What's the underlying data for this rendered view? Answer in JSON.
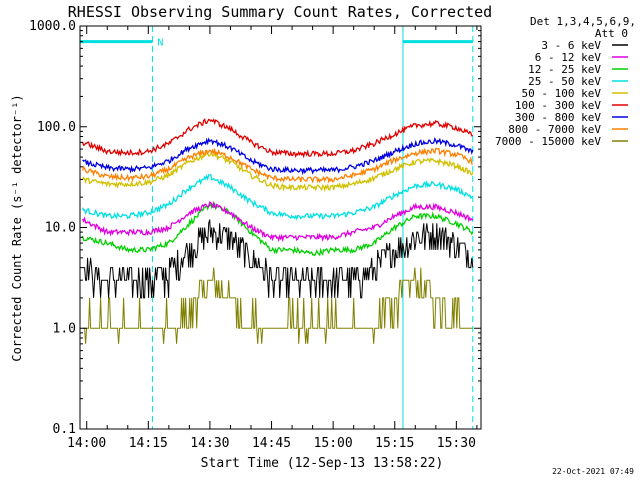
{
  "chart_data": {
    "type": "line",
    "title": "RHESSI Observing Summary Count Rates, Corrected",
    "xlabel": "Start Time (12-Sep-13 13:58:22)",
    "ylabel": "Corrected Count Rate (s⁻¹ detector⁻¹)",
    "y_scale": "log",
    "ylim": [
      0.1,
      1000.0
    ],
    "xlim": [
      "13:58:22",
      "15:36:00"
    ],
    "x_ticks": [
      "14:00",
      "14:15",
      "14:30",
      "14:45",
      "15:00",
      "15:15",
      "15:30"
    ],
    "y_ticks": [
      "0.1",
      "1.0",
      "10.0",
      "100.0",
      "1000.0"
    ],
    "legend_header": [
      "Det 1,3,4,5,6,9,",
      "Att 0"
    ],
    "legend_position": "right",
    "footer_date": "22-Oct-2021 07:49",
    "annotations": [
      {
        "type": "flag-bar",
        "label": "N",
        "start": "13:58:22",
        "end": "14:16:00",
        "value": 700
      },
      {
        "type": "flag-bar",
        "start": "15:17:00",
        "end": "15:34:00",
        "value": 700
      },
      {
        "type": "boundary-solid",
        "at": "13:58:22"
      },
      {
        "type": "boundary-dashed",
        "at": "14:16:00"
      },
      {
        "type": "boundary-solid",
        "at": "15:17:00"
      },
      {
        "type": "boundary-dashed",
        "at": "15:34:00"
      }
    ],
    "series": [
      {
        "name": "3 - 6 keV",
        "color": "#000000",
        "x": [
          "13:59",
          "14:05",
          "14:10",
          "14:15",
          "14:20",
          "14:25",
          "14:30",
          "14:35",
          "14:40",
          "14:45",
          "14:50",
          "14:55",
          "15:00",
          "15:05",
          "15:10",
          "15:15",
          "15:20",
          "15:25",
          "15:30",
          "15:34"
        ],
        "values": [
          4.0,
          3.0,
          3.0,
          3.0,
          3.5,
          6.0,
          9.0,
          8.0,
          5.0,
          3.0,
          3.0,
          3.0,
          3.0,
          3.0,
          4.0,
          6.0,
          8.0,
          9.0,
          7.0,
          5.0
        ]
      },
      {
        "name": "6 - 12 keV",
        "color": "#e000e0",
        "x": [
          "13:59",
          "14:05",
          "14:10",
          "14:15",
          "14:20",
          "14:25",
          "14:30",
          "14:35",
          "14:40",
          "14:45",
          "14:50",
          "14:55",
          "15:00",
          "15:05",
          "15:10",
          "15:15",
          "15:20",
          "15:25",
          "15:30",
          "15:34"
        ],
        "values": [
          12.0,
          9.0,
          9.0,
          9.0,
          10.0,
          14.0,
          17.0,
          14.0,
          10.0,
          8.0,
          8.0,
          8.0,
          8.0,
          9.0,
          10.0,
          13.0,
          16.0,
          16.0,
          14.0,
          12.0
        ]
      },
      {
        "name": "12 - 25 keV",
        "color": "#00d000",
        "x": [
          "13:59",
          "14:05",
          "14:10",
          "14:15",
          "14:20",
          "14:25",
          "14:30",
          "14:35",
          "14:40",
          "14:45",
          "14:50",
          "14:55",
          "15:00",
          "15:05",
          "15:10",
          "15:15",
          "15:20",
          "15:25",
          "15:30",
          "15:34"
        ],
        "values": [
          8.0,
          7.0,
          6.0,
          6.0,
          7.0,
          11.0,
          17.0,
          14.0,
          9.0,
          6.0,
          6.0,
          5.5,
          6.0,
          6.0,
          7.0,
          10.0,
          13.0,
          13.0,
          11.0,
          9.0
        ]
      },
      {
        "name": "25 - 50 keV",
        "color": "#00e0e0",
        "x": [
          "13:59",
          "14:05",
          "14:10",
          "14:15",
          "14:20",
          "14:25",
          "14:30",
          "14:35",
          "14:40",
          "14:45",
          "14:50",
          "14:55",
          "15:00",
          "15:05",
          "15:10",
          "15:15",
          "15:20",
          "15:25",
          "15:30",
          "15:34"
        ],
        "values": [
          15.0,
          13.0,
          13.0,
          14.0,
          17.0,
          25.0,
          32.0,
          25.0,
          18.0,
          14.0,
          13.0,
          13.0,
          13.0,
          14.0,
          16.0,
          21.0,
          26.0,
          27.0,
          24.0,
          20.0
        ]
      },
      {
        "name": "50 - 100 keV",
        "color": "#d0c000",
        "x": [
          "13:59",
          "14:05",
          "14:10",
          "14:15",
          "14:20",
          "14:25",
          "14:30",
          "14:35",
          "14:40",
          "14:45",
          "14:50",
          "14:55",
          "15:00",
          "15:05",
          "15:10",
          "15:15",
          "15:20",
          "15:25",
          "15:30",
          "15:34"
        ],
        "values": [
          30.0,
          27.0,
          27.0,
          28.0,
          33.0,
          45.0,
          55.0,
          45.0,
          33.0,
          26.0,
          25.0,
          25.0,
          25.0,
          27.0,
          31.0,
          38.0,
          45.0,
          46.0,
          41.0,
          34.0
        ]
      },
      {
        "name": "100 - 300 keV",
        "color": "#e00000",
        "x": [
          "13:59",
          "14:05",
          "14:10",
          "14:15",
          "14:20",
          "14:25",
          "14:30",
          "14:35",
          "14:40",
          "14:45",
          "14:50",
          "14:55",
          "15:00",
          "15:05",
          "15:10",
          "15:15",
          "15:20",
          "15:25",
          "15:30",
          "15:34"
        ],
        "values": [
          70.0,
          57.0,
          55.0,
          57.0,
          68.0,
          95.0,
          118.0,
          95.0,
          70.0,
          56.0,
          54.0,
          54.0,
          54.0,
          58.0,
          68.0,
          85.0,
          103.0,
          108.0,
          98.0,
          82.0
        ]
      },
      {
        "name": "300 - 800 keV",
        "color": "#0000e0",
        "x": [
          "13:59",
          "14:05",
          "14:10",
          "14:15",
          "14:20",
          "14:25",
          "14:30",
          "14:35",
          "14:40",
          "14:45",
          "14:50",
          "14:55",
          "15:00",
          "15:05",
          "15:10",
          "15:15",
          "15:20",
          "15:25",
          "15:30",
          "15:34"
        ],
        "values": [
          45.0,
          39.0,
          38.0,
          39.0,
          46.0,
          62.0,
          74.0,
          62.0,
          46.0,
          38.0,
          37.0,
          37.0,
          37.0,
          40.0,
          46.0,
          57.0,
          68.0,
          72.0,
          66.0,
          56.0
        ]
      },
      {
        "name": "800 - 7000 keV",
        "color": "#ff8000",
        "x": [
          "13:59",
          "14:05",
          "14:10",
          "14:15",
          "14:20",
          "14:25",
          "14:30",
          "14:35",
          "14:40",
          "14:45",
          "14:50",
          "14:55",
          "15:00",
          "15:05",
          "15:10",
          "15:15",
          "15:20",
          "15:25",
          "15:30",
          "15:34"
        ],
        "values": [
          38.0,
          32.0,
          31.0,
          32.0,
          38.0,
          50.0,
          58.0,
          50.0,
          38.0,
          31.0,
          30.0,
          30.0,
          30.0,
          33.0,
          38.0,
          47.0,
          55.0,
          58.0,
          53.0,
          45.0
        ]
      },
      {
        "name": "7000 - 15000 keV",
        "color": "#808000",
        "x": [
          "13:59",
          "14:05",
          "14:10",
          "14:15",
          "14:20",
          "14:25",
          "14:30",
          "14:35",
          "14:40",
          "14:45",
          "14:50",
          "14:55",
          "15:00",
          "15:05",
          "15:10",
          "15:15",
          "15:20",
          "15:25",
          "15:30",
          "15:34"
        ],
        "values": [
          1.0,
          1.0,
          1.0,
          1.0,
          1.0,
          1.5,
          3.0,
          2.0,
          1.0,
          1.0,
          1.0,
          1.0,
          1.0,
          1.0,
          1.0,
          2.0,
          3.0,
          2.0,
          1.5,
          1.0
        ]
      }
    ]
  }
}
